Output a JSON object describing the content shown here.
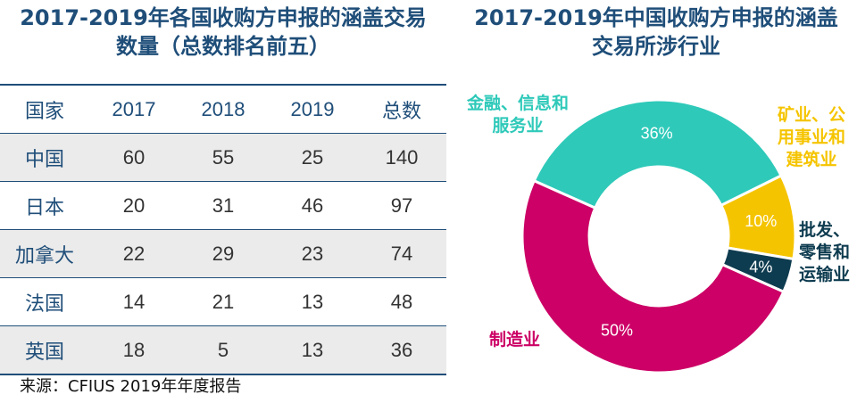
{
  "left_title": {
    "line1": "2017-2019年各国收购方申报的涵盖交易",
    "line2": "数量（总数排名前五）"
  },
  "right_title": {
    "line1": "2017-2019年中国收购方申报的涵盖",
    "line2": "交易所涉行业"
  },
  "source": "来源：CFIUS 2019年年度报告",
  "colors": {
    "title": "#1f4e79",
    "finance": "#2ec9b9",
    "mining": "#f5c400",
    "wholesale": "#0d3b4f",
    "manufacturing": "#cc0066"
  },
  "chart_data": [
    {
      "type": "table",
      "title": "2017-2019年各国收购方申报的涵盖交易数量（总数排名前五）",
      "columns": [
        "国家",
        "2017",
        "2018",
        "2019",
        "总数"
      ],
      "rows": [
        [
          "中国",
          "60",
          "55",
          "25",
          "140"
        ],
        [
          "日本",
          "20",
          "31",
          "46",
          "97"
        ],
        [
          "加拿大",
          "22",
          "29",
          "23",
          "74"
        ],
        [
          "法国",
          "14",
          "21",
          "13",
          "48"
        ],
        [
          "英国",
          "18",
          "5",
          "13",
          "36"
        ]
      ]
    },
    {
      "type": "pie",
      "title": "2017-2019年中国收购方申报的涵盖交易所涉行业",
      "slices": [
        {
          "label_lines": [
            "金融、信息和",
            "服务业"
          ],
          "value": 36,
          "value_label": "36%",
          "color": "#2ec9b9",
          "label_color": "#2ec9b9"
        },
        {
          "label_lines": [
            "矿业、公",
            "用事业和",
            "建筑业"
          ],
          "value": 10,
          "value_label": "10%",
          "color": "#f5c400",
          "label_color": "#f5c400"
        },
        {
          "label_lines": [
            "批发、",
            "零售和",
            "运输业"
          ],
          "value": 4,
          "value_label": "4%",
          "color": "#0d3b4f",
          "label_color": "#0d3b4f"
        },
        {
          "label_lines": [
            "制造业"
          ],
          "value": 50,
          "value_label": "50%",
          "color": "#cc0066",
          "label_color": "#cc0066"
        }
      ]
    }
  ]
}
